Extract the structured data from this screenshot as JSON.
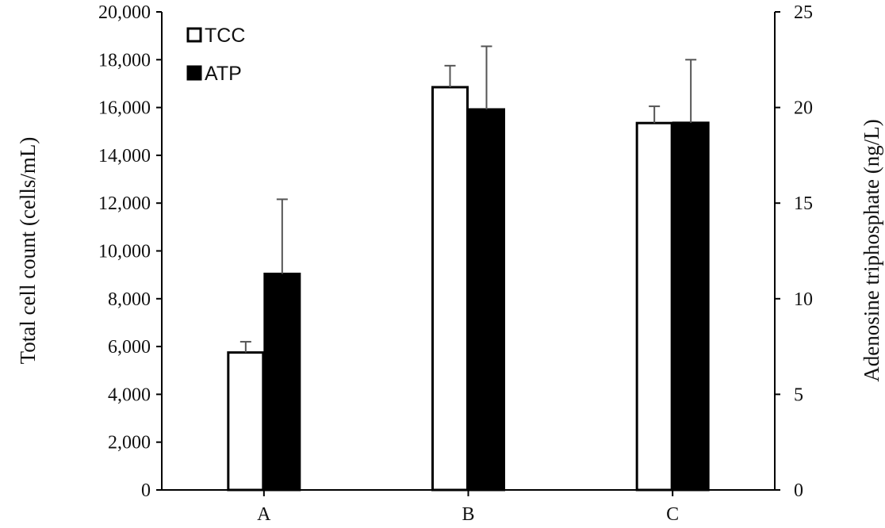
{
  "chart_data": {
    "type": "bar",
    "categories": [
      "A",
      "B",
      "C"
    ],
    "series": [
      {
        "name": "TCC",
        "axis": "left",
        "values": [
          5750,
          16850,
          15350
        ],
        "error": [
          450,
          900,
          700
        ],
        "color": "#ffffff"
      },
      {
        "name": "ATP",
        "axis": "right",
        "values": [
          11.3,
          19.9,
          19.2
        ],
        "error": [
          3.9,
          3.3,
          3.3
        ],
        "color": "#000000"
      }
    ],
    "ylabel": "Total cell count (cells/mL)",
    "y2label": "Adenosine triphosphate (ng/L)",
    "ylim": [
      0,
      20000
    ],
    "y2lim": [
      0,
      25
    ],
    "yticks": [
      "0",
      "2,000",
      "4,000",
      "6,000",
      "8,000",
      "10,000",
      "12,000",
      "14,000",
      "16,000",
      "18,000",
      "20,000"
    ],
    "y2ticks": [
      "0",
      "5",
      "10",
      "15",
      "20",
      "25"
    ],
    "legend": "top-left",
    "grid": false
  }
}
